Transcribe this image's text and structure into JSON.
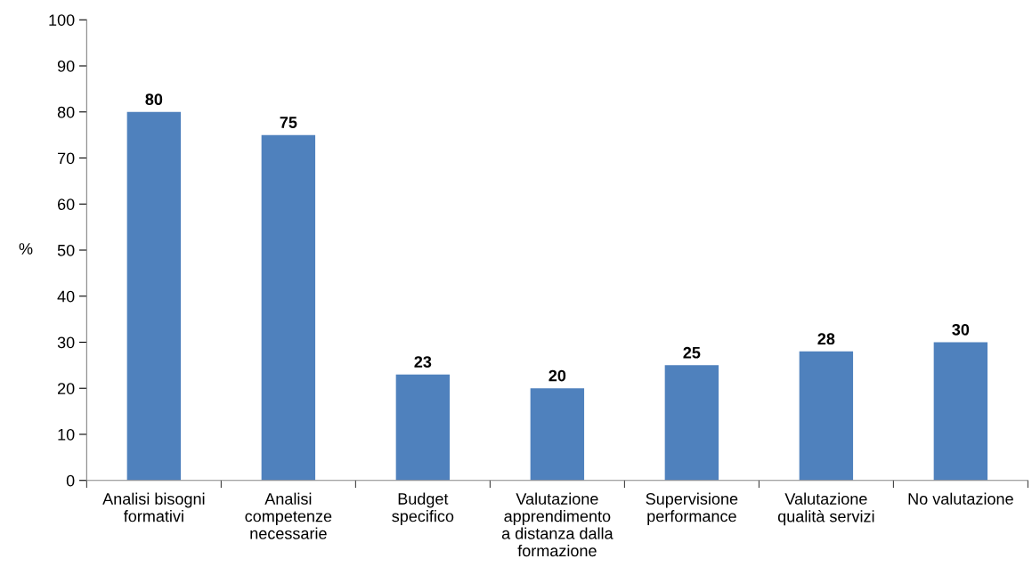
{
  "chart_data": {
    "type": "bar",
    "ylabel": "%",
    "categories": [
      "Analisi bisogni\nformativi",
      "Analisi\ncompetenze\nnecessarie",
      "Budget\nspecifico",
      "Valutazione\napprendimento\na distanza dalla\nformazione",
      "Supervisione\nperformance",
      "Valutazione\nqualità servizi",
      "No valutazione"
    ],
    "values": [
      80,
      75,
      23,
      20,
      25,
      28,
      30
    ],
    "color": "#4f81bd",
    "ylim": [
      0,
      100
    ],
    "yticks": [
      0,
      10,
      20,
      30,
      40,
      50,
      60,
      70,
      80,
      90,
      100
    ],
    "data_labels": true,
    "grid": false,
    "legend": false
  }
}
